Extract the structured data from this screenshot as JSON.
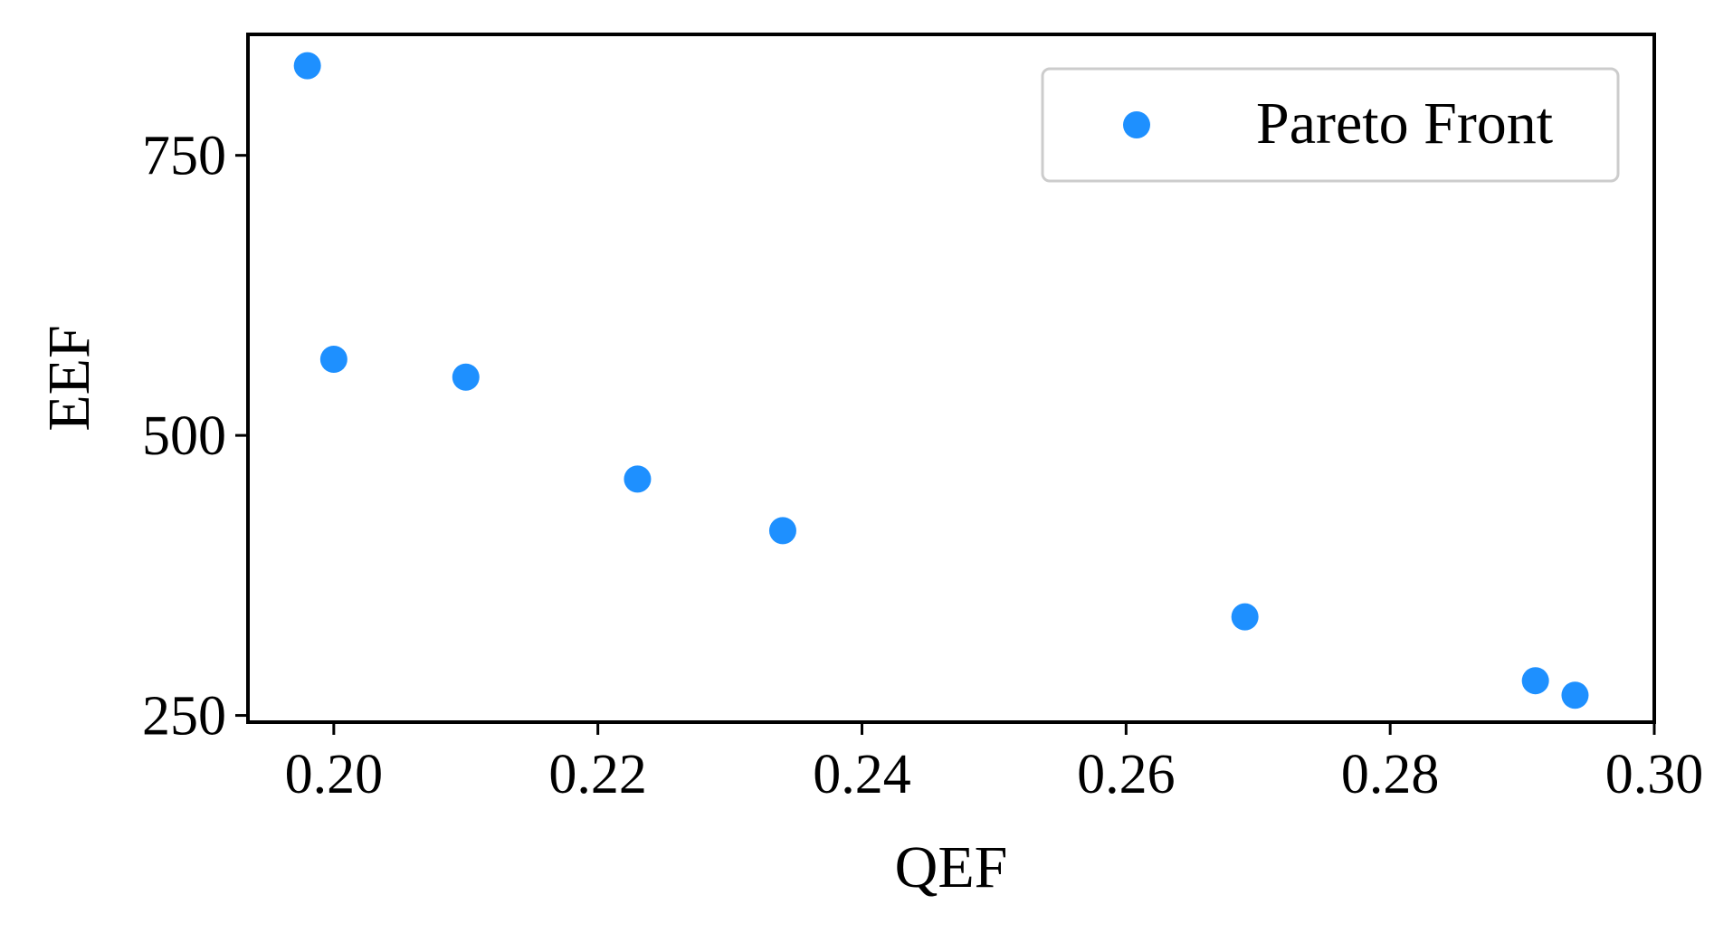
{
  "chart_data": {
    "type": "scatter",
    "title": "",
    "xlabel": "QEF",
    "ylabel": "EEF",
    "xlim": [
      0.1935,
      0.3
    ],
    "ylim": [
      244,
      858
    ],
    "xticks": [
      0.2,
      0.22,
      0.24,
      0.26,
      0.28,
      0.3
    ],
    "xtick_labels": [
      "0.20",
      "0.22",
      "0.24",
      "0.26",
      "0.28",
      "0.30"
    ],
    "yticks": [
      250,
      500,
      750
    ],
    "ytick_labels": [
      "250",
      "500",
      "750"
    ],
    "grid": false,
    "legend_position": "top-right",
    "series": [
      {
        "name": "Pareto Front",
        "color": "#1E90FF",
        "marker": "circle",
        "points": [
          {
            "x": 0.198,
            "y": 830
          },
          {
            "x": 0.2,
            "y": 568
          },
          {
            "x": 0.21,
            "y": 552
          },
          {
            "x": 0.223,
            "y": 461
          },
          {
            "x": 0.234,
            "y": 415
          },
          {
            "x": 0.269,
            "y": 338
          },
          {
            "x": 0.291,
            "y": 281
          },
          {
            "x": 0.294,
            "y": 268
          }
        ]
      }
    ]
  }
}
